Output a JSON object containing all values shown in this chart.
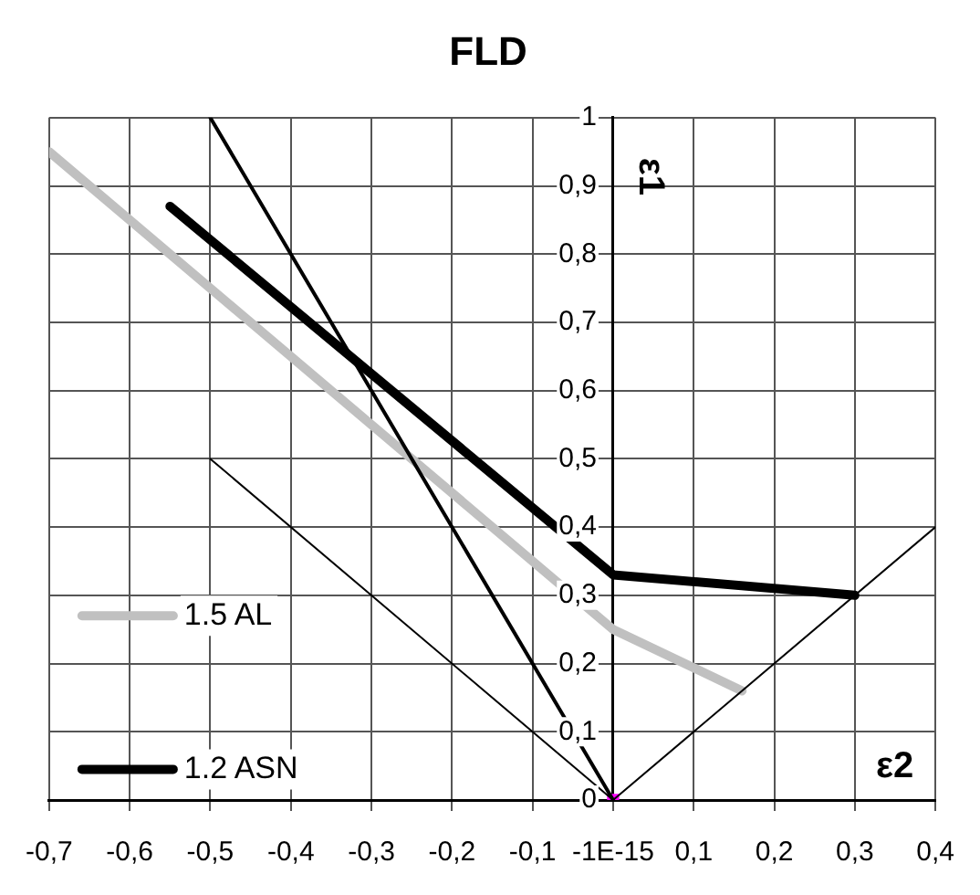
{
  "chart_data": {
    "type": "line",
    "title": "FLD",
    "xlabel": "ε2",
    "ylabel": "ε1",
    "xlim": [
      -0.7,
      0.4
    ],
    "ylim": [
      0,
      1
    ],
    "xticks": [
      {
        "value": -0.7,
        "label": "-0,7"
      },
      {
        "value": -0.6,
        "label": "-0,6"
      },
      {
        "value": -0.5,
        "label": "-0,5"
      },
      {
        "value": -0.4,
        "label": "-0,4"
      },
      {
        "value": -0.3,
        "label": "-0,3"
      },
      {
        "value": -0.2,
        "label": "-0,2"
      },
      {
        "value": -0.1,
        "label": "-0,1"
      },
      {
        "value": 0,
        "label": "-1E-15"
      },
      {
        "value": 0.1,
        "label": "0,1"
      },
      {
        "value": 0.2,
        "label": "0,2"
      },
      {
        "value": 0.3,
        "label": "0,3"
      },
      {
        "value": 0.4,
        "label": "0,4"
      }
    ],
    "yticks": [
      0,
      {
        "value": 0.1,
        "label": "0,1"
      },
      {
        "value": 0.2,
        "label": "0,2"
      },
      {
        "value": 0.3,
        "label": "0,3"
      },
      {
        "value": 0.4,
        "label": "0,4"
      },
      {
        "value": 0.5,
        "label": "0,5"
      },
      {
        "value": 0.6,
        "label": "0,6"
      },
      {
        "value": 0.7,
        "label": "0,7"
      },
      {
        "value": 0.8,
        "label": "0,8"
      },
      {
        "value": 0.9,
        "label": "0,9"
      },
      1
    ],
    "grid": true,
    "legend": "bottom left",
    "marker": "none",
    "series": [
      {
        "x": [
          -0.5,
          0
        ],
        "values": [
          1,
          0
        ],
        "color": "#000000"
      },
      {
        "x": [
          -0.5,
          0,
          0.4
        ],
        "values": [
          0.5,
          0,
          0.4
        ],
        "color": "#000000"
      },
      {
        "name": "1.5 AL",
        "x": [
          -0.7,
          0,
          0.16
        ],
        "values": [
          0.95,
          0.25,
          0.16
        ],
        "color": "#c0c0c0"
      },
      {
        "name": "1.2 ASN",
        "x": [
          -0.55,
          0,
          0.3
        ],
        "values": [
          0.87,
          0.33,
          0.3
        ],
        "color": "#000000"
      },
      {
        "type": "scatter",
        "marker": "square",
        "x": [
          0
        ],
        "values": [
          0
        ],
        "color": "#ff00ff"
      }
    ]
  }
}
